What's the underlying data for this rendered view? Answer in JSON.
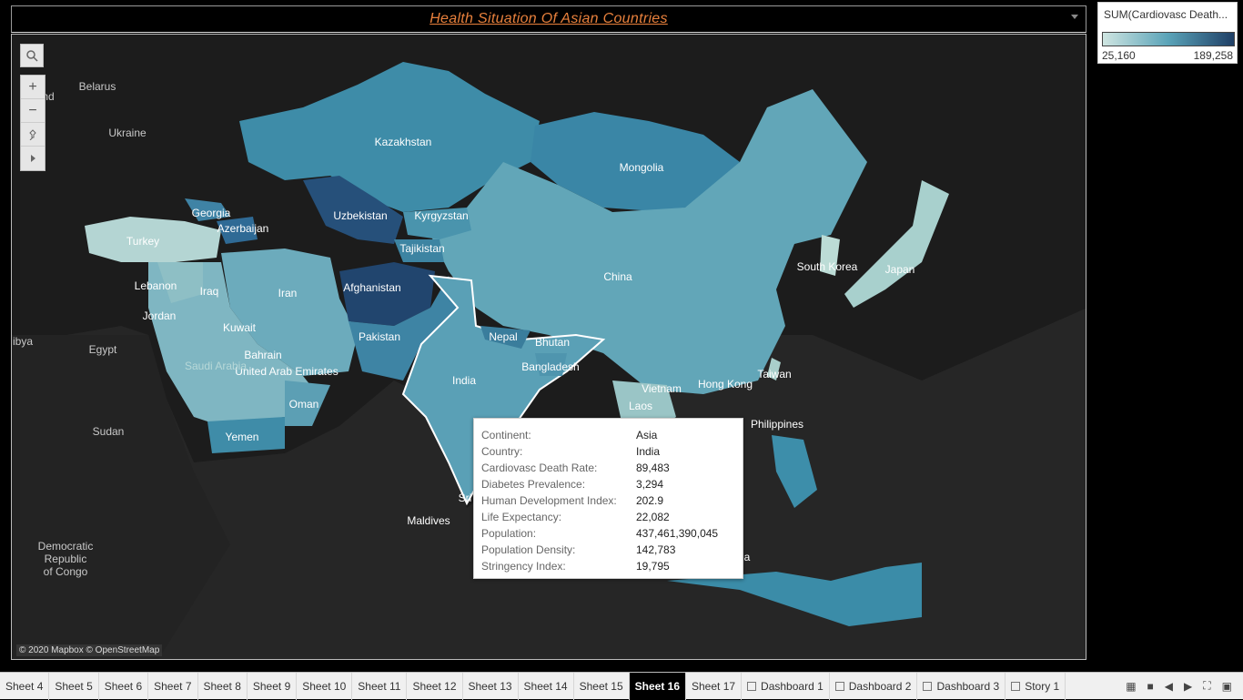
{
  "title": "Health  Situation Of Asian Countries",
  "legend": {
    "title": "SUM(Cardiovasc Death...",
    "min": "25,160",
    "max": "189,258",
    "colors": [
      "#cfe5e1",
      "#5aa3b8",
      "#1f3f66"
    ]
  },
  "map": {
    "attribution": "© 2020 Mapbox © OpenStreetMap",
    "controls": [
      "search-icon",
      "zoom-in-icon",
      "zoom-out-icon",
      "pin-icon",
      "play-icon"
    ],
    "labels": {
      "kazakhstan": "Kazakhstan",
      "mongolia": "Mongolia",
      "uzbekistan": "Uzbekistan",
      "kyrgyzstan": "Kyrgyzstan",
      "tajikistan": "Tajikistan",
      "georgia": "Georgia",
      "azerbaijan": "Azerbaijan",
      "turkey": "Turkey",
      "china": "China",
      "afghanistan": "Afghanistan",
      "pakistan": "Pakistan",
      "india": "India",
      "nepal": "Nepal",
      "bhutan": "Bhutan",
      "bangladesh": "Bangladesh",
      "iran": "Iran",
      "iraq": "Iraq",
      "lebanon": "Lebanon",
      "jordan": "Jordan",
      "kuwait": "Kuwait",
      "bahrain": "Bahrain",
      "uae": "United Arab Emirates",
      "saudi": "Saudi Arabia",
      "oman": "Oman",
      "yemen": "Yemen",
      "south_korea": "South Korea",
      "japan": "Japan",
      "taiwan": "Taiwan",
      "hong_kong": "Hong Kong",
      "vietnam": "Vietnam",
      "laos": "Laos",
      "philippines": "Philippines",
      "belarus": "Belarus",
      "ukraine": "Ukraine",
      "poland": "oland",
      "libya": "ibya",
      "egypt": "Egypt",
      "sudan": "Sudan",
      "drc": "Democratic\nRepublic\nof Congo",
      "maldives": "Maldives",
      "sri": "Sri",
      "a": "a"
    }
  },
  "tooltip": [
    {
      "key": "Continent:",
      "value": "Asia"
    },
    {
      "key": "Country:",
      "value": "India"
    },
    {
      "key": "Cardiovasc Death Rate:",
      "value": "89,483"
    },
    {
      "key": "Diabetes Prevalence:",
      "value": "3,294"
    },
    {
      "key": "Human Development Index:",
      "value": "202.9"
    },
    {
      "key": "Life Expectancy:",
      "value": "22,082"
    },
    {
      "key": "Population:",
      "value": "437,461,390,045"
    },
    {
      "key": "Population Density:",
      "value": "142,783"
    },
    {
      "key": "Stringency Index:",
      "value": "19,795"
    }
  ],
  "tabs": [
    {
      "label": "Sheet 4",
      "active": false
    },
    {
      "label": "Sheet 5",
      "active": false
    },
    {
      "label": "Sheet 6",
      "active": false
    },
    {
      "label": "Sheet 7",
      "active": false
    },
    {
      "label": "Sheet 8",
      "active": false
    },
    {
      "label": "Sheet 9",
      "active": false
    },
    {
      "label": "Sheet 10",
      "active": false
    },
    {
      "label": "Sheet 11",
      "active": false
    },
    {
      "label": "Sheet 12",
      "active": false
    },
    {
      "label": "Sheet 13",
      "active": false
    },
    {
      "label": "Sheet 14",
      "active": false
    },
    {
      "label": "Sheet 15",
      "active": false
    },
    {
      "label": "Sheet 16",
      "active": true
    },
    {
      "label": "Sheet 17",
      "active": false
    },
    {
      "label": "Dashboard 1",
      "active": false,
      "icon": "dashboard-icon"
    },
    {
      "label": "Dashboard 2",
      "active": false,
      "icon": "dashboard-icon"
    },
    {
      "label": "Dashboard 3",
      "active": false,
      "icon": "dashboard-icon"
    },
    {
      "label": "Story 1",
      "active": false,
      "icon": "story-icon"
    }
  ]
}
